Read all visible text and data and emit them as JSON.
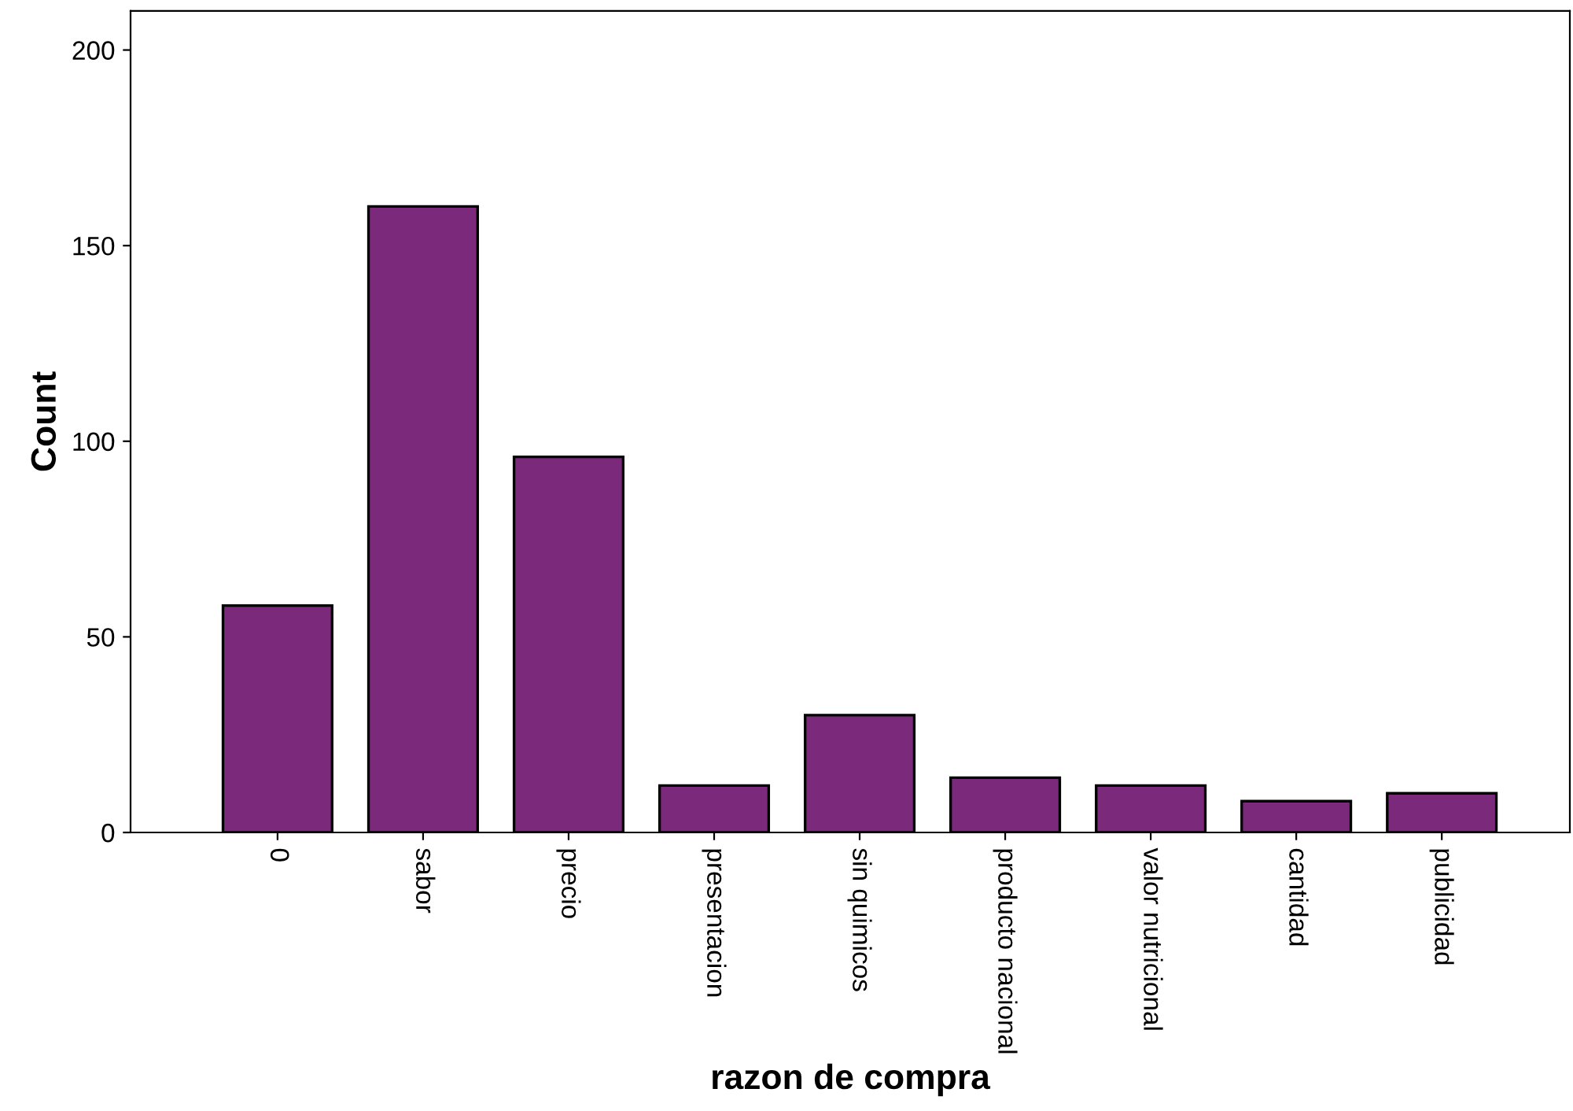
{
  "chart_data": {
    "type": "bar",
    "xlabel": "razon de compra",
    "ylabel": "Count",
    "categories": [
      "0",
      "sabor",
      "precio",
      "presentacion",
      "sin quimicos",
      "producto nacional",
      "valor nutricional",
      "cantidad",
      "publicidad"
    ],
    "values": [
      58,
      160,
      96,
      12,
      30,
      14,
      12,
      8,
      10
    ],
    "color": "#7b2a7b",
    "ylim": [
      0,
      210
    ],
    "yticks": [
      0,
      50,
      100,
      150,
      200
    ],
    "grid": false
  }
}
